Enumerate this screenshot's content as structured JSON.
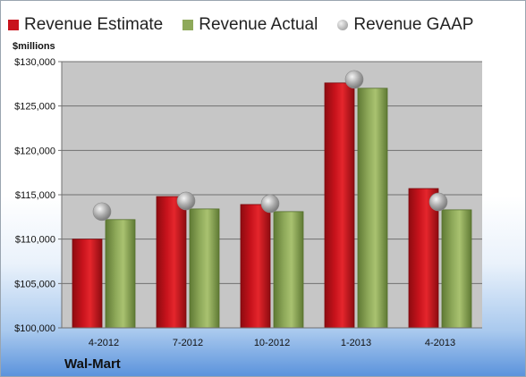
{
  "chart_data": {
    "type": "bar",
    "categories": [
      "4-2012",
      "7-2012",
      "10-2012",
      "1-2013",
      "4-2013"
    ],
    "series": [
      {
        "name": "Revenue Estimate",
        "values": [
          110000,
          114800,
          113900,
          127600,
          115700
        ]
      },
      {
        "name": "Revenue Actual",
        "values": [
          112200,
          113400,
          113100,
          127000,
          113300
        ]
      },
      {
        "name": "Revenue GAAP",
        "marker": "circle",
        "values": [
          113100,
          114300,
          114000,
          128000,
          114200
        ]
      }
    ],
    "ylabel": "$millions",
    "ylim": [
      100000,
      130000
    ],
    "yticks": [
      "$100,000",
      "$105,000",
      "$110,000",
      "$115,000",
      "$120,000",
      "$125,000",
      "$130,000"
    ],
    "grid": true,
    "legend": "top",
    "caption": "Wal-Mart",
    "colors": {
      "estimate": "#c8131c",
      "actual": "#8ea95a",
      "gaap": "#a9a9a9",
      "plot_bg": "#c6c6c6"
    }
  }
}
